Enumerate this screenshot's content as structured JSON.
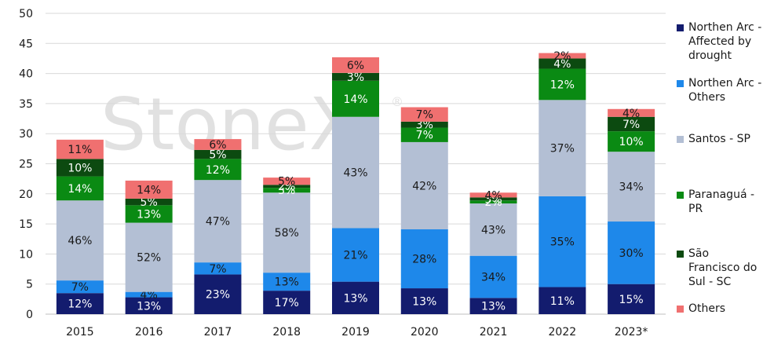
{
  "chart_data": {
    "type": "bar",
    "stacked": true,
    "categories": [
      "2015",
      "2016",
      "2017",
      "2018",
      "2019",
      "2020",
      "2021",
      "2022",
      "2023*"
    ],
    "ylim": [
      0,
      50
    ],
    "yticks": [
      0,
      5,
      10,
      15,
      20,
      25,
      30,
      35,
      40,
      45,
      50
    ],
    "grid": "horizontal",
    "legend_position": "right",
    "series": [
      {
        "name": "Northen Arc - Affected by drought",
        "color": "#131c6e",
        "label_color": "#ffffff",
        "values": [
          3.5,
          2.8,
          6.6,
          3.9,
          5.4,
          4.3,
          2.7,
          4.5,
          5.0
        ],
        "labels": [
          "12%",
          "13%",
          "23%",
          "17%",
          "13%",
          "13%",
          "13%",
          "11%",
          "15%"
        ]
      },
      {
        "name": "Northen Arc - Others",
        "color": "#1e88ea",
        "label_color": "#1a1a1a",
        "values": [
          2.1,
          0.9,
          2.0,
          3.0,
          8.9,
          9.8,
          7.0,
          15.1,
          10.4
        ],
        "labels": [
          "7%",
          "4%",
          "7%",
          "13%",
          "21%",
          "28%",
          "34%",
          "35%",
          "30%"
        ]
      },
      {
        "name": "Santos - SP",
        "color": "#b3bfd4",
        "label_color": "#1a1a1a",
        "values": [
          13.3,
          11.5,
          13.7,
          13.3,
          18.5,
          14.5,
          8.7,
          16.0,
          11.6
        ],
        "labels": [
          "46%",
          "52%",
          "47%",
          "58%",
          "43%",
          "42%",
          "43%",
          "37%",
          "34%"
        ]
      },
      {
        "name": "Paranaguá - PR",
        "color": "#0a8a13",
        "label_color": "#ffffff",
        "values": [
          4.0,
          2.9,
          3.5,
          0.8,
          6.0,
          2.4,
          0.5,
          5.2,
          3.4
        ],
        "labels": [
          "14%",
          "13%",
          "12%",
          "3%",
          "14%",
          "7%",
          "2%",
          "12%",
          "10%"
        ]
      },
      {
        "name": "São Francisco do Sul - SC",
        "color": "#0c4a10",
        "label_color": "#ffffff",
        "values": [
          2.9,
          1.1,
          1.5,
          0.5,
          1.3,
          1.0,
          0.5,
          1.7,
          2.4
        ],
        "labels": [
          "10%",
          "5%",
          "5%",
          "2%",
          "3%",
          "3%",
          "3%",
          "4%",
          "7%"
        ]
      },
      {
        "name": "Others",
        "color": "#f07070",
        "label_color": "#1a1a1a",
        "values": [
          3.2,
          3.0,
          1.8,
          1.2,
          2.6,
          2.4,
          0.8,
          0.9,
          1.3
        ],
        "labels": [
          "11%",
          "14%",
          "6%",
          "5%",
          "6%",
          "7%",
          "4%",
          "2%",
          "4%"
        ]
      }
    ]
  }
}
